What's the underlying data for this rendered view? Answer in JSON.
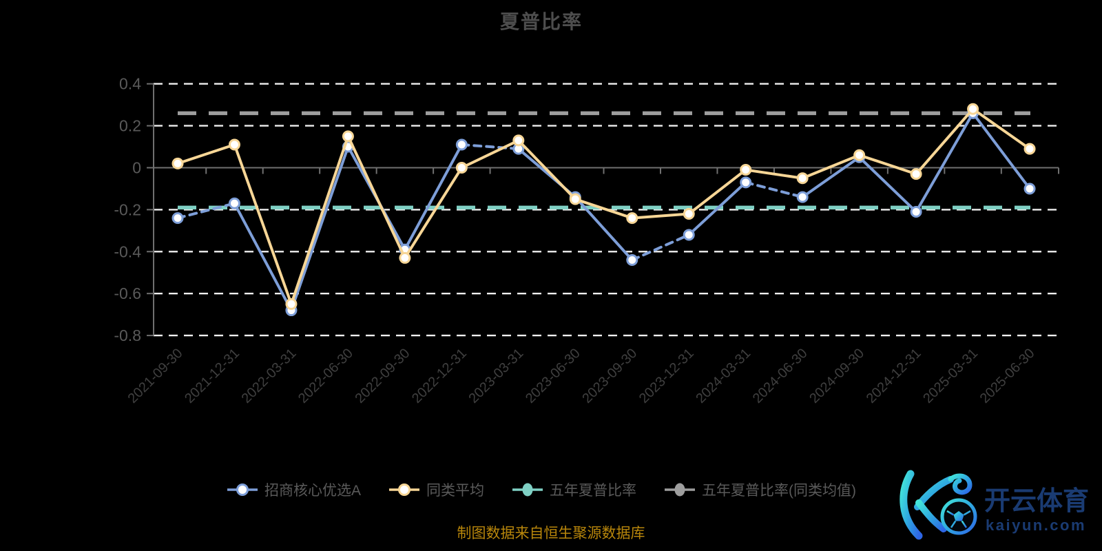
{
  "chart_data": {
    "type": "line",
    "title": "夏普比率",
    "categories": [
      "2021-09-30",
      "2021-12-31",
      "2022-03-31",
      "2022-06-30",
      "2022-09-30",
      "2022-12-31",
      "2023-03-31",
      "2023-06-30",
      "2023-09-30",
      "2023-12-31",
      "2024-03-31",
      "2024-06-30",
      "2024-09-30",
      "2024-12-31",
      "2025-03-31",
      "2025-06-30"
    ],
    "series": [
      {
        "name": "招商核心优选A",
        "color": "#7d9ed8",
        "marker": "open-circle",
        "values": [
          -0.24,
          -0.17,
          -0.68,
          0.1,
          -0.39,
          0.11,
          0.09,
          -0.14,
          -0.44,
          -0.32,
          -0.07,
          -0.14,
          0.05,
          -0.21,
          0.26,
          -0.1
        ],
        "dashed_segments": [
          0,
          5,
          8,
          10
        ]
      },
      {
        "name": "同类平均",
        "color": "#f7d696",
        "marker": "open-circle",
        "values": [
          0.02,
          0.11,
          -0.65,
          0.15,
          -0.43,
          0.0,
          0.13,
          -0.15,
          -0.24,
          -0.22,
          -0.01,
          -0.05,
          0.06,
          -0.03,
          0.28,
          0.09
        ],
        "dashed_segments": []
      }
    ],
    "reference_lines": [
      {
        "name": "五年夏普比率",
        "color": "#7fd0c4",
        "value": -0.19,
        "style": "dashed"
      },
      {
        "name": "五年夏普比率(同类均值)",
        "color": "#9e9e9e",
        "value": 0.26,
        "style": "dashed"
      }
    ],
    "y_axis": {
      "min": -0.8,
      "max": 0.4,
      "tick_step": 0.2,
      "tick_labels": [
        "0.4",
        "0.2",
        "0",
        "-0.2",
        "-0.4",
        "-0.6",
        "-0.8"
      ]
    },
    "x_axis": {
      "label_rotation": 45
    },
    "grid": "horizontal-dashed-white",
    "legend_position": "bottom",
    "background": "#000000"
  },
  "footer": {
    "source_note": "制图数据来自恒生聚源数据库"
  },
  "watermark": {
    "brand_cn": "开云体育",
    "brand_url": "kaiyun.com"
  }
}
